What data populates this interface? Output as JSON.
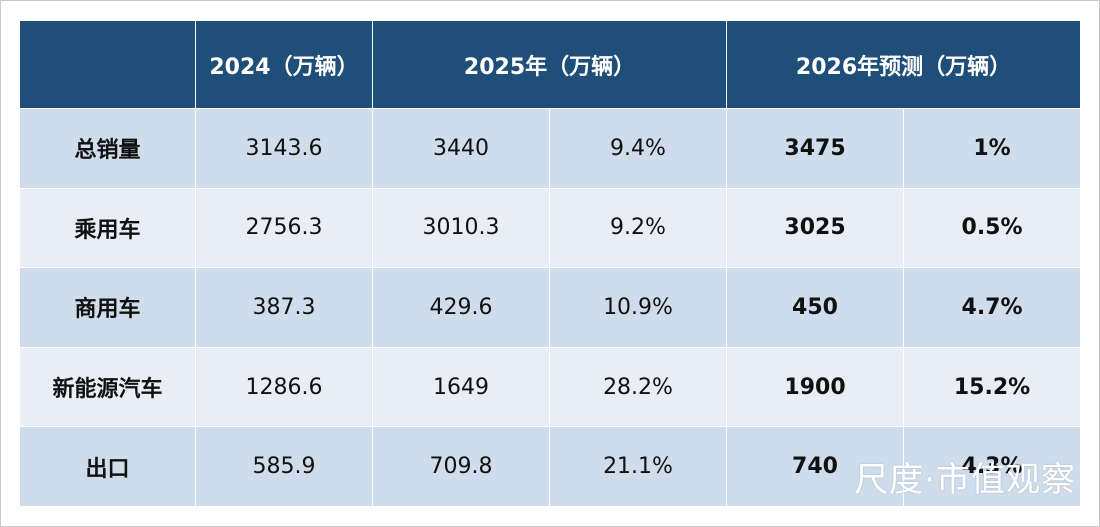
{
  "table": {
    "header": [
      "2024（万辆）",
      "2025年（万辆）",
      "2026年预测（万辆）"
    ],
    "rows": [
      [
        "总销量",
        "3143.6",
        "3440",
        "9.4%",
        "3475",
        "1%"
      ],
      [
        "乘用车",
        "2756.3",
        "3010.3",
        "9.2%",
        "3025",
        "0.5%"
      ],
      [
        "商用车",
        "387.3",
        "429.6",
        "10.9%",
        "450",
        "4.7%"
      ],
      [
        "新能源汽车",
        "1286.6",
        "1649",
        "28.2%",
        "1900",
        "15.2%"
      ],
      [
        "出口",
        "585.9",
        "709.8",
        "21.1%",
        "740",
        "4.3%"
      ]
    ]
  },
  "watermark": "尺度·市值观察"
}
